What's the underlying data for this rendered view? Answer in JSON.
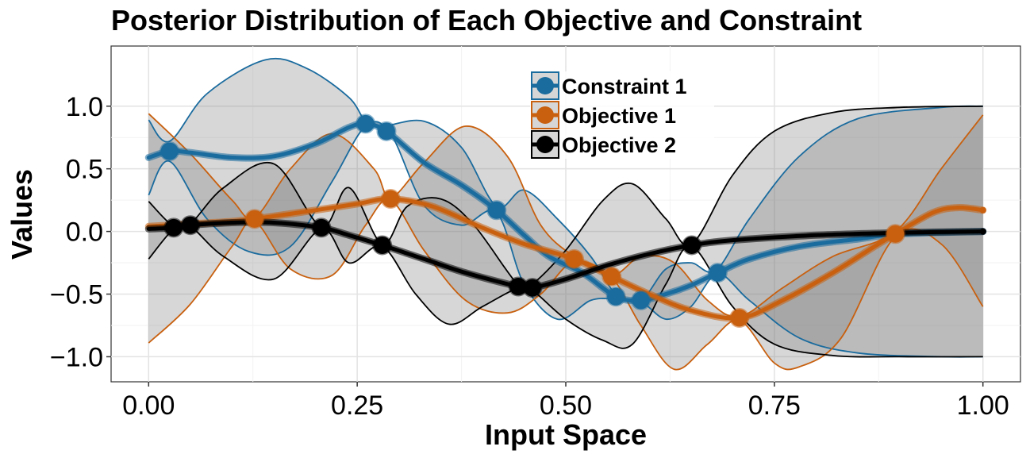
{
  "chart_data": {
    "type": "line",
    "title": "Posterior Distribution of Each Objective and Constraint",
    "xlabel": "Input Space",
    "ylabel": "Values",
    "xlim": [
      -0.045,
      1.045
    ],
    "ylim": [
      -1.2,
      1.48
    ],
    "x_ticks": [
      0.0,
      0.25,
      0.5,
      0.75,
      1.0
    ],
    "x_tick_labels": [
      "0.00",
      "0.25",
      "0.50",
      "0.75",
      "1.00"
    ],
    "y_ticks": [
      -1.0,
      -0.5,
      0.0,
      0.5,
      1.0
    ],
    "y_tick_labels": [
      "−1.0",
      "−0.5",
      "0.0",
      "0.5",
      "1.0"
    ],
    "grid": true,
    "legend_position": "top-center",
    "series": [
      {
        "name": "Constraint 1",
        "color": "#1a6b9e",
        "mean": [
          [
            0.0,
            0.59
          ],
          [
            0.025,
            0.64
          ],
          [
            0.05,
            0.63
          ],
          [
            0.1,
            0.59
          ],
          [
            0.15,
            0.6
          ],
          [
            0.2,
            0.7
          ],
          [
            0.24,
            0.83
          ],
          [
            0.26,
            0.86
          ],
          [
            0.285,
            0.8
          ],
          [
            0.33,
            0.55
          ],
          [
            0.375,
            0.37
          ],
          [
            0.417,
            0.17
          ],
          [
            0.45,
            -0.03
          ],
          [
            0.48,
            -0.2
          ],
          [
            0.52,
            -0.33
          ],
          [
            0.56,
            -0.52
          ],
          [
            0.59,
            -0.55
          ],
          [
            0.62,
            -0.5
          ],
          [
            0.65,
            -0.43
          ],
          [
            0.682,
            -0.33
          ],
          [
            0.72,
            -0.22
          ],
          [
            0.78,
            -0.12
          ],
          [
            0.85,
            -0.06
          ],
          [
            0.9,
            -0.02
          ],
          [
            1.0,
            0.0
          ]
        ],
        "band_upper": [
          [
            0.0,
            0.89
          ],
          [
            0.025,
            0.72
          ],
          [
            0.07,
            1.1
          ],
          [
            0.14,
            1.37
          ],
          [
            0.19,
            1.3
          ],
          [
            0.24,
            1.07
          ],
          [
            0.26,
            0.88
          ],
          [
            0.28,
            0.84
          ],
          [
            0.33,
            0.88
          ],
          [
            0.375,
            0.67
          ],
          [
            0.417,
            0.2
          ],
          [
            0.45,
            0.33
          ],
          [
            0.49,
            0.1
          ],
          [
            0.53,
            -0.2
          ],
          [
            0.56,
            -0.5
          ],
          [
            0.59,
            -0.55
          ],
          [
            0.62,
            -0.3
          ],
          [
            0.65,
            -0.25
          ],
          [
            0.68,
            -0.31
          ],
          [
            0.72,
            0.1
          ],
          [
            0.78,
            0.6
          ],
          [
            0.85,
            0.9
          ],
          [
            0.95,
            0.99
          ],
          [
            1.0,
            1.0
          ]
        ],
        "band_lower": [
          [
            0.0,
            0.29
          ],
          [
            0.025,
            0.56
          ],
          [
            0.07,
            0.1
          ],
          [
            0.12,
            -0.16
          ],
          [
            0.17,
            -0.12
          ],
          [
            0.22,
            0.4
          ],
          [
            0.26,
            0.84
          ],
          [
            0.29,
            0.78
          ],
          [
            0.33,
            0.21
          ],
          [
            0.375,
            0.05
          ],
          [
            0.417,
            0.15
          ],
          [
            0.45,
            -0.42
          ],
          [
            0.49,
            -0.7
          ],
          [
            0.53,
            -0.55
          ],
          [
            0.56,
            -0.54
          ],
          [
            0.59,
            -0.56
          ],
          [
            0.62,
            -0.7
          ],
          [
            0.65,
            -0.6
          ],
          [
            0.682,
            -0.34
          ],
          [
            0.72,
            -0.55
          ],
          [
            0.78,
            -0.85
          ],
          [
            0.85,
            -0.97
          ],
          [
            0.95,
            -1.0
          ],
          [
            1.0,
            -1.0
          ]
        ],
        "points": [
          [
            0.025,
            0.64
          ],
          [
            0.26,
            0.86
          ],
          [
            0.285,
            0.8
          ],
          [
            0.417,
            0.17
          ],
          [
            0.56,
            -0.52
          ],
          [
            0.59,
            -0.55
          ],
          [
            0.682,
            -0.33
          ]
        ]
      },
      {
        "name": "Objective 1",
        "color": "#c8600f",
        "mean": [
          [
            0.0,
            0.04
          ],
          [
            0.05,
            0.06
          ],
          [
            0.1,
            0.08
          ],
          [
            0.127,
            0.1
          ],
          [
            0.2,
            0.17
          ],
          [
            0.25,
            0.22
          ],
          [
            0.29,
            0.26
          ],
          [
            0.34,
            0.2
          ],
          [
            0.4,
            0.03
          ],
          [
            0.45,
            -0.1
          ],
          [
            0.51,
            -0.22
          ],
          [
            0.555,
            -0.36
          ],
          [
            0.6,
            -0.5
          ],
          [
            0.65,
            -0.63
          ],
          [
            0.708,
            -0.69
          ],
          [
            0.76,
            -0.55
          ],
          [
            0.82,
            -0.33
          ],
          [
            0.87,
            -0.12
          ],
          [
            0.895,
            -0.02
          ],
          [
            0.94,
            0.15
          ],
          [
            0.97,
            0.19
          ],
          [
            1.0,
            0.17
          ]
        ],
        "band_upper": [
          [
            0.0,
            0.94
          ],
          [
            0.05,
            0.62
          ],
          [
            0.1,
            0.25
          ],
          [
            0.127,
            0.11
          ],
          [
            0.17,
            0.5
          ],
          [
            0.22,
            0.78
          ],
          [
            0.27,
            0.5
          ],
          [
            0.29,
            0.27
          ],
          [
            0.33,
            0.55
          ],
          [
            0.38,
            0.84
          ],
          [
            0.43,
            0.6
          ],
          [
            0.47,
            0.05
          ],
          [
            0.51,
            -0.2
          ],
          [
            0.555,
            -0.35
          ],
          [
            0.59,
            -0.2
          ],
          [
            0.63,
            -0.25
          ],
          [
            0.67,
            -0.55
          ],
          [
            0.708,
            -0.68
          ],
          [
            0.76,
            -0.45
          ],
          [
            0.82,
            -0.2
          ],
          [
            0.895,
            0.0
          ],
          [
            0.95,
            0.5
          ],
          [
            1.0,
            0.93
          ]
        ],
        "band_lower": [
          [
            0.0,
            -0.89
          ],
          [
            0.05,
            -0.58
          ],
          [
            0.1,
            -0.12
          ],
          [
            0.127,
            0.08
          ],
          [
            0.17,
            -0.3
          ],
          [
            0.22,
            -0.35
          ],
          [
            0.26,
            0.05
          ],
          [
            0.29,
            0.25
          ],
          [
            0.33,
            -0.15
          ],
          [
            0.38,
            -0.55
          ],
          [
            0.43,
            -0.65
          ],
          [
            0.47,
            -0.5
          ],
          [
            0.51,
            -0.24
          ],
          [
            0.555,
            -0.37
          ],
          [
            0.59,
            -0.75
          ],
          [
            0.63,
            -1.1
          ],
          [
            0.67,
            -0.9
          ],
          [
            0.708,
            -0.71
          ],
          [
            0.75,
            -1.05
          ],
          [
            0.78,
            -1.08
          ],
          [
            0.83,
            -0.85
          ],
          [
            0.895,
            -0.04
          ],
          [
            0.95,
            -0.1
          ],
          [
            1.0,
            -0.6
          ]
        ],
        "points": [
          [
            0.127,
            0.1
          ],
          [
            0.29,
            0.26
          ],
          [
            0.51,
            -0.22
          ],
          [
            0.555,
            -0.36
          ],
          [
            0.708,
            -0.69
          ],
          [
            0.895,
            -0.02
          ]
        ]
      },
      {
        "name": "Objective 2",
        "color": "#000000",
        "mean": [
          [
            0.0,
            0.02
          ],
          [
            0.03,
            0.03
          ],
          [
            0.05,
            0.05
          ],
          [
            0.1,
            0.07
          ],
          [
            0.15,
            0.07
          ],
          [
            0.207,
            0.03
          ],
          [
            0.24,
            -0.03
          ],
          [
            0.28,
            -0.11
          ],
          [
            0.33,
            -0.22
          ],
          [
            0.38,
            -0.33
          ],
          [
            0.443,
            -0.44
          ],
          [
            0.46,
            -0.45
          ],
          [
            0.5,
            -0.38
          ],
          [
            0.55,
            -0.27
          ],
          [
            0.6,
            -0.18
          ],
          [
            0.651,
            -0.11
          ],
          [
            0.7,
            -0.07
          ],
          [
            0.8,
            -0.03
          ],
          [
            0.9,
            -0.01
          ],
          [
            1.0,
            0.0
          ]
        ],
        "band_upper": [
          [
            0.0,
            0.24
          ],
          [
            0.03,
            0.04
          ],
          [
            0.05,
            0.06
          ],
          [
            0.09,
            0.35
          ],
          [
            0.15,
            0.54
          ],
          [
            0.207,
            0.04
          ],
          [
            0.24,
            0.35
          ],
          [
            0.28,
            -0.1
          ],
          [
            0.31,
            0.2
          ],
          [
            0.35,
            0.26
          ],
          [
            0.39,
            0.05
          ],
          [
            0.443,
            -0.43
          ],
          [
            0.46,
            -0.42
          ],
          [
            0.5,
            -0.15
          ],
          [
            0.545,
            0.25
          ],
          [
            0.58,
            0.38
          ],
          [
            0.62,
            0.1
          ],
          [
            0.651,
            -0.1
          ],
          [
            0.7,
            0.45
          ],
          [
            0.75,
            0.8
          ],
          [
            0.82,
            0.95
          ],
          [
            0.9,
            0.99
          ],
          [
            1.0,
            1.0
          ]
        ],
        "band_lower": [
          [
            0.0,
            -0.22
          ],
          [
            0.03,
            0.02
          ],
          [
            0.05,
            0.04
          ],
          [
            0.09,
            -0.2
          ],
          [
            0.15,
            -0.38
          ],
          [
            0.207,
            0.02
          ],
          [
            0.24,
            -0.25
          ],
          [
            0.28,
            -0.12
          ],
          [
            0.32,
            -0.5
          ],
          [
            0.36,
            -0.74
          ],
          [
            0.4,
            -0.6
          ],
          [
            0.443,
            -0.45
          ],
          [
            0.46,
            -0.47
          ],
          [
            0.5,
            -0.7
          ],
          [
            0.545,
            -0.87
          ],
          [
            0.58,
            -0.9
          ],
          [
            0.62,
            -0.42
          ],
          [
            0.651,
            -0.12
          ],
          [
            0.7,
            -0.6
          ],
          [
            0.75,
            -0.9
          ],
          [
            0.82,
            -0.99
          ],
          [
            0.9,
            -1.0
          ],
          [
            1.0,
            -1.0
          ]
        ],
        "points": [
          [
            0.03,
            0.03
          ],
          [
            0.05,
            0.05
          ],
          [
            0.207,
            0.03
          ],
          [
            0.28,
            -0.11
          ],
          [
            0.443,
            -0.44
          ],
          [
            0.46,
            -0.45
          ],
          [
            0.651,
            -0.11
          ]
        ]
      }
    ]
  }
}
